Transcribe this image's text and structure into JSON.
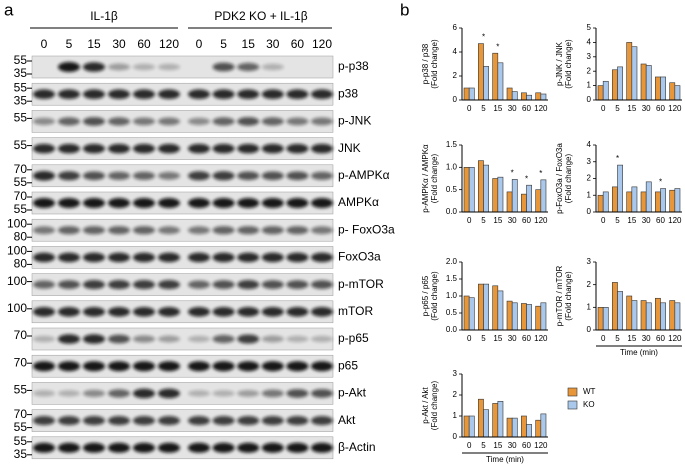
{
  "panel_labels": [
    "a",
    "b"
  ],
  "blot": {
    "groups": [
      "IL-1β",
      "PDK2 KO + IL-1β"
    ],
    "lanes": [
      "0",
      "5",
      "15",
      "30",
      "60",
      "120",
      "0",
      "5",
      "15",
      "30",
      "60",
      "120"
    ],
    "rows": [
      {
        "label": "p-p38",
        "mw": [
          "55",
          "35"
        ]
      },
      {
        "label": "p38",
        "mw": [
          "55",
          "35"
        ]
      },
      {
        "label": "p-JNK",
        "mw": [
          "55"
        ]
      },
      {
        "label": "JNK",
        "mw": [
          "55"
        ]
      },
      {
        "label": "p-AMPKα",
        "mw": [
          "70",
          "55"
        ]
      },
      {
        "label": "AMPKα",
        "mw": [
          "70",
          "55"
        ]
      },
      {
        "label": "p- FoxO3a",
        "mw": [
          "100",
          "80"
        ]
      },
      {
        "label": "FoxO3a",
        "mw": [
          "100",
          "80"
        ]
      },
      {
        "label": "p-mTOR",
        "mw": [
          "100"
        ]
      },
      {
        "label": "mTOR",
        "mw": [
          "100"
        ]
      },
      {
        "label": "p-p65",
        "mw": [
          "70"
        ]
      },
      {
        "label": "p65",
        "mw": [
          "70"
        ]
      },
      {
        "label": "p-Akt",
        "mw": [
          "55"
        ]
      },
      {
        "label": "Akt",
        "mw": [
          "70",
          "55"
        ]
      },
      {
        "label": "β-Actin",
        "mw": [
          "55",
          "35"
        ]
      }
    ]
  },
  "chart_data": [
    {
      "type": "bar",
      "ylabel": [
        "p-p38 / p38",
        "(Fold change)"
      ],
      "categories": [
        "0",
        "5",
        "15",
        "30",
        "60",
        "120"
      ],
      "series": [
        {
          "color": "#e8963a",
          "values": [
            1.0,
            4.7,
            3.9,
            1.0,
            0.6,
            0.6
          ]
        },
        {
          "color": "#a9c8ec",
          "values": [
            1.0,
            2.8,
            3.1,
            0.7,
            0.4,
            0.5
          ]
        }
      ],
      "ylim": [
        0,
        6
      ],
      "yticks": [
        0,
        2,
        4,
        6
      ],
      "annotations": [
        {
          "text": "*",
          "x": "5"
        },
        {
          "text": "*",
          "x": "15"
        }
      ]
    },
    {
      "type": "bar",
      "ylabel": [
        "p-JNK / JNK",
        "(Fold change)"
      ],
      "categories": [
        "0",
        "5",
        "15",
        "30",
        "60",
        "120"
      ],
      "series": [
        {
          "color": "#e8963a",
          "values": [
            1.0,
            2.1,
            4.0,
            2.5,
            1.6,
            1.2
          ]
        },
        {
          "color": "#a9c8ec",
          "values": [
            1.3,
            2.3,
            3.7,
            2.4,
            1.6,
            1.0
          ]
        }
      ],
      "ylim": [
        0,
        5
      ],
      "yticks": [
        0,
        1,
        2,
        3,
        4,
        5
      ]
    },
    {
      "type": "bar",
      "ylabel": [
        "p-AMPKα / AMPKα",
        "(Fold change)"
      ],
      "categories": [
        "0",
        "5",
        "15",
        "30",
        "60",
        "120"
      ],
      "series": [
        {
          "color": "#e8963a",
          "values": [
            1.0,
            1.15,
            0.75,
            0.45,
            0.4,
            0.5
          ]
        },
        {
          "color": "#a9c8ec",
          "values": [
            1.0,
            1.05,
            0.78,
            0.73,
            0.6,
            0.72
          ]
        }
      ],
      "ylim": [
        0,
        1.5
      ],
      "yticks": [
        {
          "value": 0,
          "label": "0.0"
        },
        0.5,
        {
          "value": 1,
          "label": "1.0"
        },
        1.5
      ],
      "annotations": [
        {
          "text": "*",
          "x": "30"
        },
        {
          "text": "*",
          "x": "60"
        },
        {
          "text": "*",
          "x": "120"
        }
      ]
    },
    {
      "type": "bar",
      "ylabel": [
        "p-FoxO3a / FoxO3a",
        "(Fold change)"
      ],
      "categories": [
        "0",
        "5",
        "15",
        "30",
        "60",
        "120"
      ],
      "series": [
        {
          "color": "#e8963a",
          "values": [
            1.0,
            1.5,
            1.2,
            1.2,
            1.2,
            1.3
          ]
        },
        {
          "color": "#a9c8ec",
          "values": [
            1.2,
            2.8,
            1.5,
            1.8,
            1.4,
            1.4
          ]
        }
      ],
      "ylim": [
        0,
        4
      ],
      "yticks": [
        0,
        1,
        2,
        3,
        4
      ],
      "annotations": [
        {
          "text": "*",
          "x": "5"
        },
        {
          "text": "*",
          "x": "60"
        }
      ]
    },
    {
      "type": "bar",
      "ylabel": [
        "p-p65 / p65",
        "(Fold change)"
      ],
      "categories": [
        "0",
        "5",
        "15",
        "30",
        "60",
        "120"
      ],
      "series": [
        {
          "color": "#e8963a",
          "values": [
            1.0,
            1.35,
            1.3,
            0.85,
            0.78,
            0.7
          ]
        },
        {
          "color": "#a9c8ec",
          "values": [
            0.95,
            1.35,
            1.15,
            0.8,
            0.75,
            0.8
          ]
        }
      ],
      "ylim": [
        0,
        2
      ],
      "yticks": [
        {
          "value": 0,
          "label": "0.0"
        },
        0.5,
        {
          "value": 1,
          "label": "1.0"
        },
        1.5,
        {
          "value": 2,
          "label": "2.0"
        }
      ]
    },
    {
      "type": "bar",
      "ylabel": [
        "p-mTOR / mTOR",
        "(Fold change)"
      ],
      "xlabel": "Time (min)",
      "categories": [
        "0",
        "5",
        "15",
        "30",
        "60",
        "120"
      ],
      "series": [
        {
          "color": "#e8963a",
          "values": [
            1.0,
            2.1,
            1.5,
            1.3,
            1.4,
            1.3
          ]
        },
        {
          "color": "#a9c8ec",
          "values": [
            1.0,
            1.7,
            1.3,
            1.2,
            1.2,
            1.2
          ]
        }
      ],
      "ylim": [
        0,
        3
      ],
      "yticks": [
        0,
        1,
        2,
        3
      ]
    },
    {
      "type": "bar",
      "ylabel": [
        "p-Akt / Akt",
        "(Fold change)"
      ],
      "xlabel": "Time (min)",
      "categories": [
        "0",
        "5",
        "15",
        "30",
        "60",
        "120"
      ],
      "series": [
        {
          "name": "WT",
          "color": "#e8963a",
          "values": [
            1.0,
            1.8,
            1.6,
            0.9,
            1.0,
            0.8
          ]
        },
        {
          "name": "KO",
          "color": "#a9c8ec",
          "values": [
            1.0,
            1.3,
            1.7,
            0.9,
            0.6,
            1.1
          ]
        }
      ],
      "ylim": [
        0,
        3
      ],
      "yticks": [
        0,
        1,
        2,
        3
      ],
      "legend": "right"
    }
  ]
}
